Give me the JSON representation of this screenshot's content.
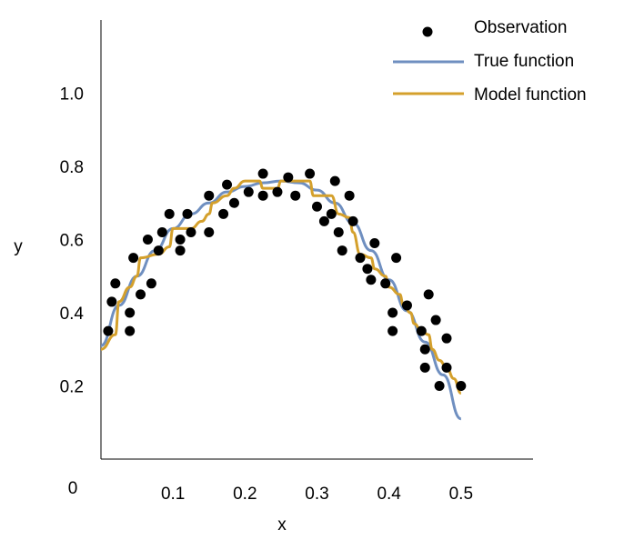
{
  "chart_data": {
    "type": "scatter",
    "title": "",
    "xlabel": "x",
    "ylabel": "y",
    "origin_label": "0",
    "xlim": [
      0,
      0.6
    ],
    "ylim": [
      0,
      1.2
    ],
    "x_ticks": [
      0.1,
      0.2,
      0.3,
      0.4,
      0.5
    ],
    "x_tick_labels": [
      "0.1",
      "0.2",
      "0.3",
      "0.4",
      "0.5"
    ],
    "y_ticks": [
      0.2,
      0.4,
      0.6,
      0.8,
      1.0
    ],
    "y_tick_labels": [
      "0.2",
      "0.4",
      "0.6",
      "0.8",
      "1.0"
    ],
    "grid": false,
    "legend_position": "top-right",
    "series": [
      {
        "name": "Observation",
        "kind": "scatter",
        "color": "#000000",
        "points": [
          [
            0.01,
            0.35
          ],
          [
            0.015,
            0.43
          ],
          [
            0.02,
            0.48
          ],
          [
            0.04,
            0.35
          ],
          [
            0.04,
            0.4
          ],
          [
            0.045,
            0.55
          ],
          [
            0.055,
            0.45
          ],
          [
            0.065,
            0.6
          ],
          [
            0.07,
            0.48
          ],
          [
            0.08,
            0.57
          ],
          [
            0.085,
            0.62
          ],
          [
            0.095,
            0.67
          ],
          [
            0.11,
            0.57
          ],
          [
            0.11,
            0.6
          ],
          [
            0.12,
            0.67
          ],
          [
            0.125,
            0.62
          ],
          [
            0.15,
            0.62
          ],
          [
            0.15,
            0.72
          ],
          [
            0.17,
            0.67
          ],
          [
            0.175,
            0.75
          ],
          [
            0.185,
            0.7
          ],
          [
            0.205,
            0.73
          ],
          [
            0.225,
            0.72
          ],
          [
            0.225,
            0.78
          ],
          [
            0.245,
            0.73
          ],
          [
            0.26,
            0.77
          ],
          [
            0.27,
            0.72
          ],
          [
            0.29,
            0.78
          ],
          [
            0.3,
            0.69
          ],
          [
            0.31,
            0.65
          ],
          [
            0.32,
            0.67
          ],
          [
            0.325,
            0.76
          ],
          [
            0.33,
            0.62
          ],
          [
            0.335,
            0.57
          ],
          [
            0.345,
            0.72
          ],
          [
            0.35,
            0.65
          ],
          [
            0.36,
            0.55
          ],
          [
            0.37,
            0.52
          ],
          [
            0.375,
            0.49
          ],
          [
            0.38,
            0.59
          ],
          [
            0.395,
            0.48
          ],
          [
            0.405,
            0.4
          ],
          [
            0.405,
            0.35
          ],
          [
            0.41,
            0.55
          ],
          [
            0.425,
            0.42
          ],
          [
            0.445,
            0.35
          ],
          [
            0.45,
            0.3
          ],
          [
            0.45,
            0.25
          ],
          [
            0.455,
            0.45
          ],
          [
            0.465,
            0.38
          ],
          [
            0.47,
            0.2
          ],
          [
            0.48,
            0.25
          ],
          [
            0.48,
            0.33
          ],
          [
            0.5,
            0.2
          ]
        ]
      },
      {
        "name": "True function",
        "kind": "line",
        "color": "#6f8fc0",
        "points": [
          [
            0.0,
            0.31
          ],
          [
            0.025,
            0.42
          ],
          [
            0.05,
            0.5
          ],
          [
            0.075,
            0.57
          ],
          [
            0.1,
            0.63
          ],
          [
            0.125,
            0.67
          ],
          [
            0.15,
            0.7
          ],
          [
            0.175,
            0.73
          ],
          [
            0.2,
            0.745
          ],
          [
            0.225,
            0.755
          ],
          [
            0.25,
            0.76
          ],
          [
            0.275,
            0.755
          ],
          [
            0.3,
            0.735
          ],
          [
            0.325,
            0.7
          ],
          [
            0.35,
            0.645
          ],
          [
            0.375,
            0.57
          ],
          [
            0.4,
            0.49
          ],
          [
            0.425,
            0.405
          ],
          [
            0.45,
            0.32
          ],
          [
            0.475,
            0.23
          ],
          [
            0.5,
            0.11
          ]
        ]
      },
      {
        "name": "Model function",
        "kind": "line",
        "color": "#d4a02c",
        "points": [
          [
            0.0,
            0.3
          ],
          [
            0.02,
            0.34
          ],
          [
            0.025,
            0.43
          ],
          [
            0.04,
            0.47
          ],
          [
            0.05,
            0.5
          ],
          [
            0.055,
            0.55
          ],
          [
            0.08,
            0.56
          ],
          [
            0.095,
            0.58
          ],
          [
            0.1,
            0.63
          ],
          [
            0.125,
            0.63
          ],
          [
            0.14,
            0.65
          ],
          [
            0.15,
            0.67
          ],
          [
            0.155,
            0.7
          ],
          [
            0.175,
            0.72
          ],
          [
            0.185,
            0.74
          ],
          [
            0.2,
            0.76
          ],
          [
            0.22,
            0.76
          ],
          [
            0.225,
            0.74
          ],
          [
            0.245,
            0.74
          ],
          [
            0.25,
            0.76
          ],
          [
            0.29,
            0.76
          ],
          [
            0.295,
            0.72
          ],
          [
            0.32,
            0.72
          ],
          [
            0.33,
            0.67
          ],
          [
            0.345,
            0.66
          ],
          [
            0.35,
            0.62
          ],
          [
            0.36,
            0.56
          ],
          [
            0.375,
            0.55
          ],
          [
            0.38,
            0.52
          ],
          [
            0.395,
            0.5
          ],
          [
            0.4,
            0.47
          ],
          [
            0.415,
            0.45
          ],
          [
            0.42,
            0.42
          ],
          [
            0.43,
            0.4
          ],
          [
            0.435,
            0.37
          ],
          [
            0.445,
            0.35
          ],
          [
            0.455,
            0.34
          ],
          [
            0.46,
            0.3
          ],
          [
            0.47,
            0.27
          ],
          [
            0.48,
            0.25
          ],
          [
            0.49,
            0.22
          ],
          [
            0.5,
            0.18
          ]
        ]
      }
    ]
  }
}
